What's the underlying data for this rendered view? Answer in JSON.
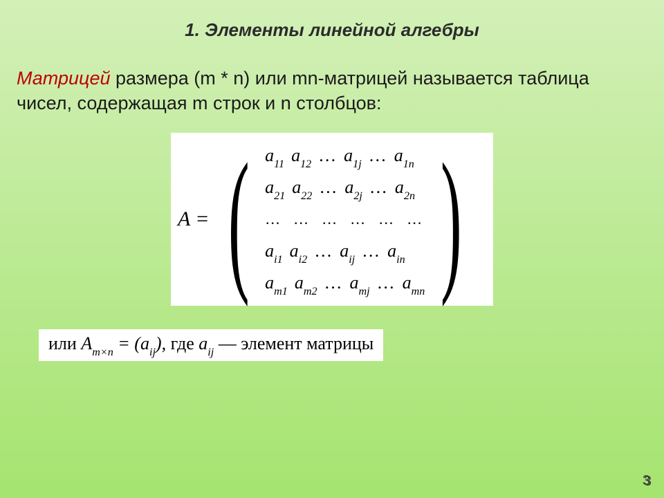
{
  "colors": {
    "bg_gradient_top": "#d3f0b8",
    "bg_gradient_bottom": "#a5e46f",
    "title_color": "#2b2b2b",
    "body_color": "#1a1a1a",
    "term_color": "#c00000",
    "page_number_color": "#3a3a3a",
    "formula_bg": "#ffffff"
  },
  "typography": {
    "title_fontsize": 26,
    "body_fontsize": 27,
    "formula_fontsize": 26,
    "pagenum_fontsize": 20
  },
  "title": "1. Элементы линейной алгебры",
  "term": "Матрицей",
  "body_rest": " размера (m * n) или mn-матрицей называется таблица чисел, содержащая m строк и n столбцов:",
  "matrix": {
    "lhs": "A =",
    "rows": [
      [
        "a",
        "11",
        "a",
        "12",
        "…",
        "a",
        "1j",
        "…",
        "a",
        "1n"
      ],
      [
        "a",
        "21",
        "a",
        "22",
        "…",
        "a",
        "2j",
        "…",
        "a",
        "2n"
      ],
      [
        "…",
        "…",
        "…",
        "…",
        "…",
        "…"
      ],
      [
        "a",
        "i1",
        "a",
        "i2",
        "…",
        "a",
        "ij",
        "…",
        "a",
        "in"
      ],
      [
        "a",
        "m1",
        "a",
        "m2",
        "…",
        "a",
        "mj",
        "…",
        "a",
        "mn"
      ]
    ]
  },
  "formula2": {
    "prefix_plain": "или ",
    "A": "A",
    "A_sub": "m×n",
    "eq": " = (",
    "a": "a",
    "a_sub": "ij",
    "close": "),",
    "where_plain": " где ",
    "a2": "a",
    "a2_sub": "ij",
    "dash_plain": " — элемент матрицы"
  },
  "page_number": "3"
}
